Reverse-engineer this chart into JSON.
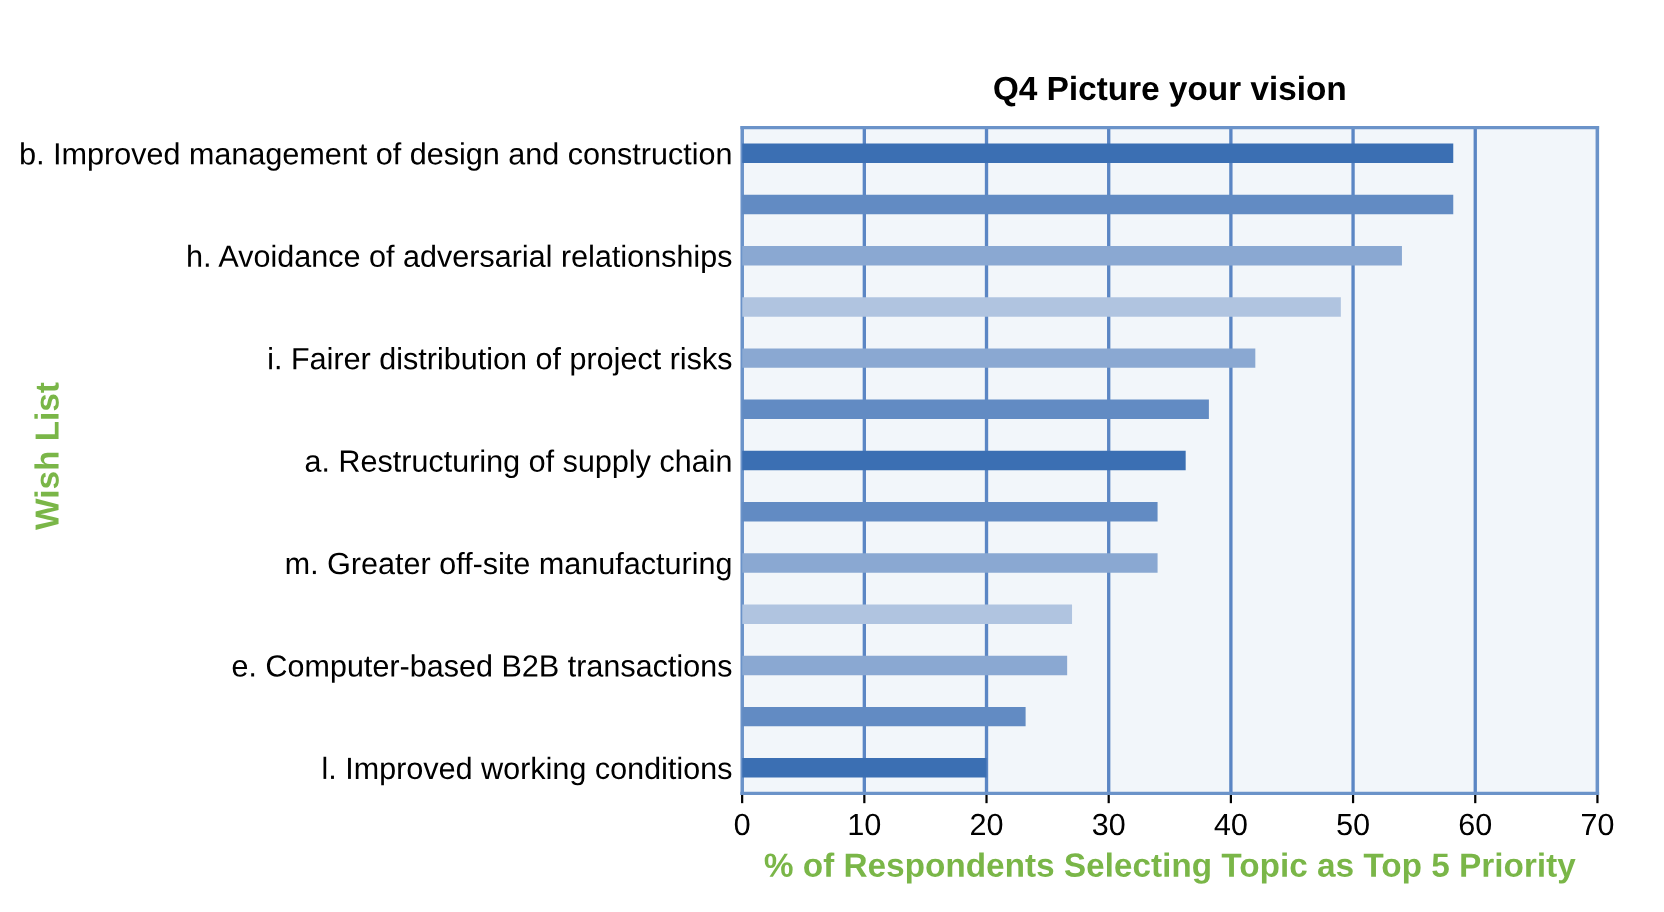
{
  "chart_data": {
    "type": "bar",
    "orientation": "horizontal",
    "title": "Q4 Picture your vision",
    "xlabel": "% of Respondents Selecting Topic as Top 5 Priority",
    "ylabel": "Wish List",
    "categories": [
      "b. Improved management of design and construction",
      null,
      "h. Avoidance of adversarial relationships",
      null,
      "i. Fairer distribution of project risks",
      null,
      "a. Restructuring of supply chain",
      null,
      "m. Greater off-site manufacturing",
      null,
      "e. Computer-based B2B transactions",
      null,
      "l. Improved working conditions"
    ],
    "values": [
      58.2,
      58.2,
      54,
      49,
      42,
      38.2,
      36.3,
      34,
      34,
      27,
      26.6,
      23.2,
      20
    ],
    "colors": [
      "#3b6fb3",
      "#628bc3",
      "#8aa8d2",
      "#b0c4e0",
      "#8aa8d2",
      "#628bc3",
      "#3b6fb3",
      "#628bc3",
      "#8aa8d2",
      "#b0c4e0",
      "#8aa8d2",
      "#628bc3",
      "#3b6fb3"
    ],
    "xlim": [
      0,
      70
    ],
    "xticks": [
      0,
      10,
      20,
      30,
      40,
      50,
      60,
      70
    ],
    "grid": "x"
  }
}
